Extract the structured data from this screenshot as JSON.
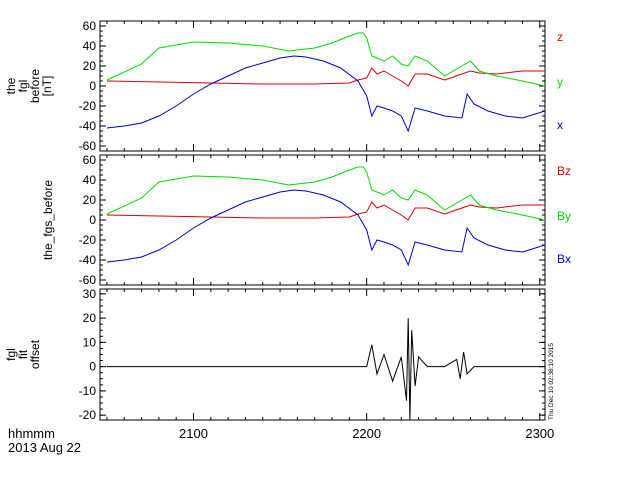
{
  "footer": {
    "time_format": "hhmmm",
    "date": "2013 Aug 22",
    "timestamp": "Thu Dec 10 02:38:10 2015"
  },
  "colors": {
    "x": "#0000cc",
    "y": "#00dd00",
    "z": "#dd0000",
    "trace": "#000000"
  },
  "chart_data": [
    {
      "type": "line",
      "ylabel": [
        "the",
        "fgl",
        "before",
        "[nT]"
      ],
      "ylim": [
        -65,
        65
      ],
      "yticks": [
        60,
        40,
        20,
        0,
        -20,
        -40,
        -60
      ],
      "legend_placement": "right",
      "series": [
        {
          "name": "z",
          "color": "#dd0000",
          "x": [
            2050,
            2080,
            2110,
            2140,
            2170,
            2190,
            2195,
            2200,
            2203,
            2206,
            2210,
            2215,
            2220,
            2224,
            2228,
            2235,
            2245,
            2255,
            2260,
            2265,
            2275,
            2290,
            2303
          ],
          "y": [
            5,
            4,
            3,
            2,
            2,
            3,
            6,
            8,
            18,
            12,
            15,
            10,
            5,
            0,
            12,
            12,
            6,
            12,
            15,
            13,
            12,
            15,
            15
          ]
        },
        {
          "name": "y",
          "color": "#00dd00",
          "x": [
            2050,
            2070,
            2080,
            2100,
            2120,
            2140,
            2155,
            2170,
            2180,
            2190,
            2195,
            2198,
            2200,
            2203,
            2206,
            2210,
            2215,
            2220,
            2224,
            2228,
            2235,
            2245,
            2255,
            2260,
            2265,
            2275,
            2290,
            2303
          ],
          "y": [
            6,
            22,
            38,
            44,
            43,
            40,
            35,
            38,
            43,
            50,
            53,
            53,
            48,
            30,
            28,
            25,
            30,
            22,
            20,
            30,
            25,
            10,
            20,
            25,
            15,
            10,
            5,
            0
          ]
        },
        {
          "name": "x",
          "color": "#0000cc",
          "x": [
            2050,
            2060,
            2070,
            2080,
            2090,
            2100,
            2110,
            2120,
            2130,
            2140,
            2150,
            2158,
            2165,
            2175,
            2185,
            2195,
            2200,
            2203,
            2206,
            2210,
            2215,
            2220,
            2224,
            2228,
            2235,
            2245,
            2255,
            2258,
            2262,
            2270,
            2280,
            2290,
            2303
          ],
          "y": [
            -42,
            -40,
            -37,
            -30,
            -20,
            -8,
            2,
            10,
            18,
            23,
            28,
            30,
            29,
            25,
            18,
            5,
            -10,
            -30,
            -20,
            -22,
            -25,
            -30,
            -45,
            -22,
            -25,
            -30,
            -32,
            -8,
            -18,
            -25,
            -30,
            -32,
            -25
          ]
        }
      ]
    },
    {
      "type": "line",
      "ylabel": [
        "the_fgs_before"
      ],
      "ylim": [
        -65,
        65
      ],
      "yticks": [
        60,
        40,
        20,
        0,
        -20,
        -40,
        -60
      ],
      "legend_placement": "right",
      "series": [
        {
          "name": "Bz",
          "color": "#dd0000",
          "x": [
            2050,
            2080,
            2110,
            2140,
            2170,
            2190,
            2195,
            2200,
            2203,
            2206,
            2210,
            2215,
            2220,
            2224,
            2228,
            2235,
            2245,
            2255,
            2260,
            2265,
            2275,
            2290,
            2303
          ],
          "y": [
            5,
            4,
            3,
            2,
            2,
            3,
            6,
            8,
            18,
            12,
            15,
            10,
            5,
            0,
            12,
            12,
            6,
            12,
            15,
            13,
            12,
            15,
            15
          ]
        },
        {
          "name": "By",
          "color": "#00dd00",
          "x": [
            2050,
            2070,
            2080,
            2100,
            2120,
            2140,
            2155,
            2170,
            2180,
            2190,
            2195,
            2198,
            2200,
            2203,
            2206,
            2210,
            2215,
            2220,
            2224,
            2228,
            2235,
            2245,
            2255,
            2260,
            2265,
            2275,
            2290,
            2303
          ],
          "y": [
            6,
            22,
            38,
            44,
            43,
            40,
            35,
            38,
            43,
            50,
            53,
            53,
            48,
            30,
            28,
            25,
            30,
            22,
            20,
            30,
            25,
            10,
            20,
            25,
            15,
            10,
            5,
            0
          ]
        },
        {
          "name": "Bx",
          "color": "#0000cc",
          "x": [
            2050,
            2060,
            2070,
            2080,
            2090,
            2100,
            2110,
            2120,
            2130,
            2140,
            2150,
            2158,
            2165,
            2175,
            2185,
            2195,
            2200,
            2203,
            2206,
            2210,
            2215,
            2220,
            2224,
            2228,
            2235,
            2245,
            2255,
            2258,
            2262,
            2270,
            2280,
            2290,
            2303
          ],
          "y": [
            -42,
            -40,
            -37,
            -30,
            -20,
            -8,
            2,
            10,
            18,
            23,
            28,
            30,
            29,
            25,
            18,
            5,
            -10,
            -30,
            -20,
            -22,
            -25,
            -30,
            -45,
            -22,
            -25,
            -30,
            -32,
            -8,
            -18,
            -25,
            -30,
            -32,
            -25
          ]
        }
      ]
    },
    {
      "type": "line",
      "ylabel": [
        "fgl",
        "fit",
        "offset"
      ],
      "ylim": [
        -22,
        32
      ],
      "yticks": [
        30,
        20,
        10,
        0,
        -10,
        -20
      ],
      "xlim": [
        2046,
        2303
      ],
      "xticks": [
        2100,
        2200,
        2300
      ],
      "xticklabels": [
        "2100",
        "2200",
        "2300"
      ],
      "series": [
        {
          "color": "#000000",
          "x": [
            2050,
            2195,
            2200,
            2203,
            2206,
            2210,
            2215,
            2220,
            2223,
            2224,
            2225,
            2226,
            2228,
            2230,
            2235,
            2245,
            2252,
            2254,
            2256,
            2258,
            2262,
            2270,
            2303
          ],
          "y": [
            0,
            0,
            0,
            9,
            -3,
            5,
            -6,
            4,
            -14,
            20,
            -22,
            15,
            -8,
            4,
            0,
            0,
            3,
            -5,
            6,
            -3,
            0,
            0,
            0
          ]
        }
      ]
    }
  ]
}
